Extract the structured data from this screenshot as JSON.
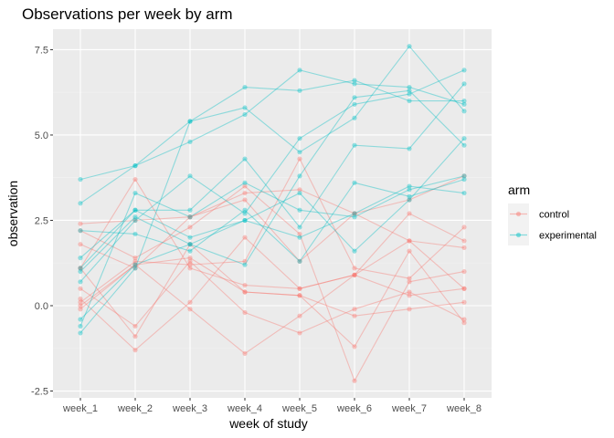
{
  "chart_data": {
    "type": "line",
    "title": "Observations per week by arm",
    "xlabel": "week of study",
    "ylabel": "observation",
    "categories": [
      "week_1",
      "week_2",
      "week_3",
      "week_4",
      "week_5",
      "week_6",
      "week_7",
      "week_8"
    ],
    "ylim": [
      -2.7,
      8.1
    ],
    "yticks": [
      -2.5,
      0,
      2.5,
      5,
      7.5
    ],
    "ytick_labels": [
      "-2.5",
      "0.0",
      "2.5",
      "5.0",
      "7.5"
    ],
    "grid": true,
    "legend": {
      "title": "arm",
      "placement": "right",
      "entries": [
        "control",
        "experimental"
      ]
    },
    "colors": {
      "control": "#F8766D",
      "experimental": "#00BFC4",
      "panel": "#EBEBEB",
      "grid_major": "#FFFFFF",
      "grid_minor": "#F2F2F2"
    },
    "series": [
      {
        "arm": "control",
        "values": [
          0.2,
          -1.3,
          0.1,
          2.0,
          0.5,
          0.9,
          1.9,
          0.5
        ]
      },
      {
        "arm": "control",
        "values": [
          1.1,
          3.7,
          1.1,
          0.6,
          0.5,
          0.9,
          0.3,
          0.5
        ]
      },
      {
        "arm": "control",
        "values": [
          0.1,
          1.3,
          1.2,
          1.3,
          4.3,
          1.1,
          0.8,
          2.3
        ]
      },
      {
        "arm": "control",
        "values": [
          1.8,
          1.1,
          2.6,
          3.3,
          3.4,
          2.7,
          1.9,
          1.7
        ]
      },
      {
        "arm": "control",
        "values": [
          2.4,
          2.5,
          2.6,
          3.1,
          1.3,
          2.7,
          3.1,
          3.8
        ]
      },
      {
        "arm": "control",
        "values": [
          2.2,
          1.4,
          2.3,
          3.5,
          2.1,
          -2.2,
          0.7,
          1.0
        ]
      },
      {
        "arm": "control",
        "values": [
          -0.1,
          1.2,
          -0.1,
          -1.4,
          -0.3,
          0.9,
          2.7,
          1.9
        ]
      },
      {
        "arm": "control",
        "values": [
          0.5,
          -0.6,
          1.3,
          -0.2,
          -0.8,
          -0.1,
          0.4,
          -0.4
        ]
      },
      {
        "arm": "control",
        "values": [
          1.1,
          -0.9,
          1.8,
          0.4,
          0.3,
          -1.2,
          1.6,
          -0.5
        ]
      },
      {
        "arm": "control",
        "values": [
          0.0,
          1.2,
          1.4,
          0.4,
          0.3,
          -0.3,
          -0.1,
          0.1
        ]
      },
      {
        "arm": "experimental",
        "values": [
          3.0,
          4.1,
          5.4,
          6.4,
          6.3,
          6.6,
          6.0,
          6.0
        ]
      },
      {
        "arm": "experimental",
        "values": [
          3.7,
          4.1,
          4.8,
          5.6,
          6.9,
          6.5,
          6.4,
          5.9
        ]
      },
      {
        "arm": "experimental",
        "values": [
          -0.8,
          1.1,
          5.4,
          5.8,
          4.5,
          5.5,
          7.6,
          5.7
        ]
      },
      {
        "arm": "experimental",
        "values": [
          0.7,
          2.5,
          3.8,
          2.7,
          4.9,
          5.9,
          6.2,
          6.9
        ]
      },
      {
        "arm": "experimental",
        "values": [
          1.4,
          2.8,
          2.8,
          4.3,
          2.3,
          4.7,
          4.6,
          6.5
        ]
      },
      {
        "arm": "experimental",
        "values": [
          -0.4,
          1.2,
          1.8,
          1.2,
          3.8,
          6.1,
          6.3,
          4.7
        ]
      },
      {
        "arm": "experimental",
        "values": [
          -0.6,
          3.3,
          2.6,
          3.6,
          2.8,
          2.6,
          3.4,
          3.8
        ]
      },
      {
        "arm": "experimental",
        "values": [
          1.0,
          2.6,
          1.8,
          2.5,
          2.0,
          2.7,
          3.5,
          3.3
        ]
      },
      {
        "arm": "experimental",
        "values": [
          2.2,
          2.1,
          1.6,
          2.8,
          1.3,
          3.6,
          3.2,
          3.7
        ]
      },
      {
        "arm": "experimental",
        "values": [
          1.1,
          2.8,
          2.0,
          2.5,
          3.3,
          1.6,
          3.1,
          4.9
        ]
      }
    ]
  }
}
